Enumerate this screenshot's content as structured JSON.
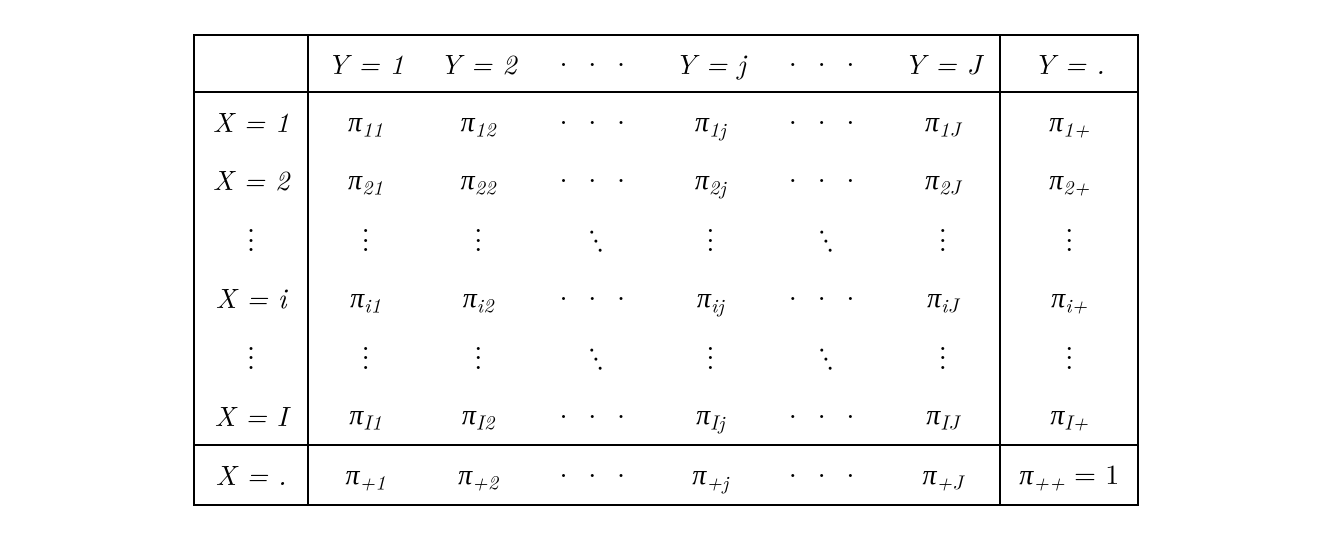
{
  "symbols": {
    "cdots": "···",
    "vdots": ".\n.\n.",
    "ddots": ".\n.\n."
  },
  "table": {
    "background_color": "#ffffff",
    "text_color": "#000000",
    "border_color": "#000000",
    "font_size_pt": 21,
    "font_family": "Latin Modern Roman / Times (serif, italic math)",
    "n_cols": 8,
    "n_rows": 8,
    "cells": {
      "r0c0": "",
      "r0c1": "Y = 1",
      "r0c2": "Y = 2",
      "r0c3": "···",
      "r0c4": "Y = j",
      "r0c5": "···",
      "r0c6": "Y = J",
      "r0c7": "Y = .",
      "r1c0": "X = 1",
      "r1c1_base": "π",
      "r1c1_sub": "11",
      "r1c2_base": "π",
      "r1c2_sub": "12",
      "r1c3": "···",
      "r1c4_base": "π",
      "r1c4_sub": "1j",
      "r1c5": "···",
      "r1c6_base": "π",
      "r1c6_sub": "1J",
      "r1c7_base": "π",
      "r1c7_sub": "1+",
      "r2c0": "X = 2",
      "r2c1_base": "π",
      "r2c1_sub": "21",
      "r2c2_base": "π",
      "r2c2_sub": "22",
      "r2c3": "···",
      "r2c4_base": "π",
      "r2c4_sub": "2j",
      "r2c5": "···",
      "r2c6_base": "π",
      "r2c6_sub": "2J",
      "r2c7_base": "π",
      "r2c7_sub": "2+",
      "r3_pattern": "vdots-ddots",
      "r4c0": "X = i",
      "r4c1_base": "π",
      "r4c1_sub": "i1",
      "r4c2_base": "π",
      "r4c2_sub": "i2",
      "r4c3": "···",
      "r4c4_base": "π",
      "r4c4_sub": "ij",
      "r4c5": "···",
      "r4c6_base": "π",
      "r4c6_sub": "iJ",
      "r4c7_base": "π",
      "r4c7_sub": "i+",
      "r5_pattern": "vdots-ddots",
      "r6c0": "X = I",
      "r6c1_base": "π",
      "r6c1_sub": "I1",
      "r6c2_base": "π",
      "r6c2_sub": "I2",
      "r6c3": "···",
      "r6c4_base": "π",
      "r6c4_sub": "Ij",
      "r6c5": "···",
      "r6c6_base": "π",
      "r6c6_sub": "IJ",
      "r6c7_base": "π",
      "r6c7_sub": "I+",
      "r7c0": "X = .",
      "r7c1_base": "π",
      "r7c1_sub": "+1",
      "r7c2_base": "π",
      "r7c2_sub": "+2",
      "r7c3": "···",
      "r7c4_base": "π",
      "r7c4_sub": "+j",
      "r7c5": "···",
      "r7c6_base": "π",
      "r7c6_sub": "+J",
      "r7c7_base": "π",
      "r7c7_sub": "++",
      "r7c7_tail": " = 1"
    }
  }
}
